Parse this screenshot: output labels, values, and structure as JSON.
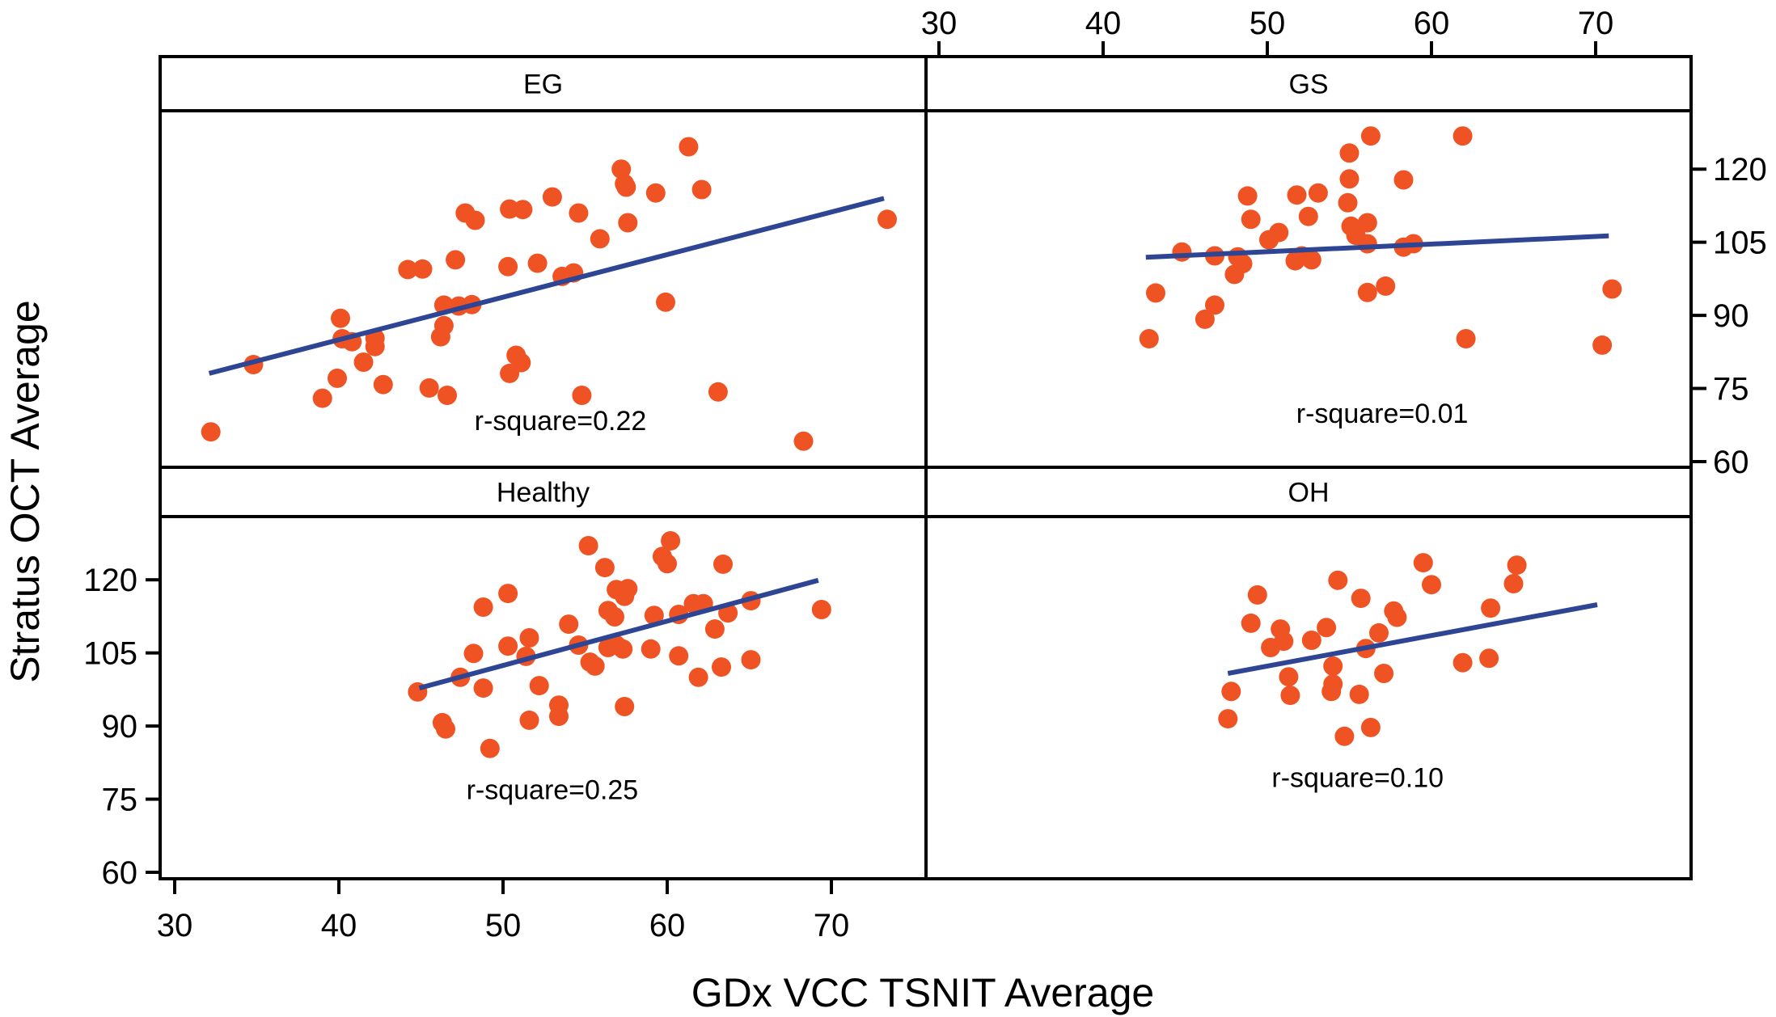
{
  "chart_data": {
    "type": "scatter",
    "title": "",
    "xlabel": "GDx VCC TSNIT Average",
    "ylabel": "Stratus OCT Average",
    "xlim": [
      29.1,
      75.8
    ],
    "ylim": [
      58.7,
      133
    ],
    "xticks": [
      30,
      40,
      50,
      60,
      70
    ],
    "yticks": [
      60,
      75,
      90,
      105,
      120
    ],
    "grid": false,
    "layout": "2x2 panels; x axis ticks on bottom-left and top-right, y axis ticks on bottom-left and top-right",
    "colors": {
      "points": "#F05323",
      "fit_line": "#2E4593",
      "frame": "#000000"
    },
    "panels": [
      {
        "name": "EG",
        "row": 0,
        "col": 0,
        "r_square_label": "r-square=0.22",
        "r_square": 0.22,
        "label_pos": [
          53.5,
          66.5
        ],
        "fit_line": {
          "x": [
            32.1,
            73.2
          ],
          "y": [
            78.1,
            114.0
          ]
        },
        "points": [
          [
            32.2,
            66.1
          ],
          [
            34.8,
            79.9
          ],
          [
            39.0,
            73.0
          ],
          [
            39.9,
            77.1
          ],
          [
            40.1,
            89.4
          ],
          [
            40.2,
            85.2
          ],
          [
            40.8,
            84.6
          ],
          [
            41.5,
            80.4
          ],
          [
            42.2,
            85.3
          ],
          [
            42.2,
            83.6
          ],
          [
            42.7,
            75.8
          ],
          [
            44.2,
            99.4
          ],
          [
            45.1,
            99.5
          ],
          [
            45.5,
            75.1
          ],
          [
            46.6,
            73.6
          ],
          [
            46.4,
            92.1
          ],
          [
            47.3,
            91.9
          ],
          [
            48.1,
            92.2
          ],
          [
            46.4,
            87.9
          ],
          [
            46.2,
            85.6
          ],
          [
            47.1,
            101.4
          ],
          [
            47.7,
            111.0
          ],
          [
            48.3,
            109.5
          ],
          [
            50.4,
            111.8
          ],
          [
            51.2,
            111.7
          ],
          [
            50.3,
            100.0
          ],
          [
            50.8,
            81.8
          ],
          [
            51.1,
            80.3
          ],
          [
            50.4,
            78.1
          ],
          [
            52.1,
            100.7
          ],
          [
            53.0,
            114.3
          ],
          [
            54.6,
            111.0
          ],
          [
            55.9,
            105.7
          ],
          [
            53.6,
            98.0
          ],
          [
            54.3,
            98.7
          ],
          [
            57.2,
            120.0
          ],
          [
            57.5,
            116.3
          ],
          [
            57.6,
            109.0
          ],
          [
            59.3,
            115.1
          ],
          [
            61.3,
            124.6
          ],
          [
            62.1,
            115.8
          ],
          [
            59.9,
            92.7
          ],
          [
            73.4,
            109.7
          ],
          [
            54.8,
            73.6
          ],
          [
            63.1,
            74.3
          ],
          [
            68.3,
            64.2
          ],
          [
            57.4,
            117.0
          ]
        ]
      },
      {
        "name": "GS",
        "row": 0,
        "col": 1,
        "r_square_label": "r-square=0.01",
        "r_square": 0.01,
        "label_pos": [
          57.0,
          68.0
        ],
        "fit_line": {
          "x": [
            42.6,
            70.8
          ],
          "y": [
            101.9,
            106.3
          ]
        },
        "points": [
          [
            42.8,
            85.2
          ],
          [
            43.2,
            94.6
          ],
          [
            44.8,
            103.0
          ],
          [
            46.2,
            89.2
          ],
          [
            46.8,
            92.1
          ],
          [
            46.8,
            102.2
          ],
          [
            48.0,
            98.4
          ],
          [
            48.2,
            102.0
          ],
          [
            48.5,
            100.6
          ],
          [
            48.8,
            114.5
          ],
          [
            49.0,
            109.7
          ],
          [
            50.1,
            105.5
          ],
          [
            50.7,
            107.0
          ],
          [
            51.7,
            101.2
          ],
          [
            52.1,
            102.2
          ],
          [
            52.7,
            101.4
          ],
          [
            51.8,
            114.7
          ],
          [
            53.1,
            115.1
          ],
          [
            52.5,
            110.3
          ],
          [
            54.9,
            113.1
          ],
          [
            55.0,
            118.0
          ],
          [
            55.0,
            123.3
          ],
          [
            56.3,
            126.8
          ],
          [
            55.1,
            108.3
          ],
          [
            56.1,
            109.0
          ],
          [
            55.4,
            106.4
          ],
          [
            56.1,
            104.7
          ],
          [
            56.1,
            94.7
          ],
          [
            57.2,
            96.0
          ],
          [
            58.3,
            117.8
          ],
          [
            58.3,
            104.0
          ],
          [
            58.9,
            104.7
          ],
          [
            61.9,
            126.8
          ],
          [
            62.1,
            85.2
          ],
          [
            71.0,
            95.4
          ],
          [
            70.4,
            83.9
          ]
        ]
      },
      {
        "name": "Healthy",
        "row": 1,
        "col": 0,
        "r_square_label": "r-square=0.25",
        "r_square": 0.25,
        "label_pos": [
          53.0,
          75.0
        ],
        "fit_line": {
          "x": [
            44.9,
            69.2
          ],
          "y": [
            97.8,
            119.9
          ]
        },
        "points": [
          [
            44.8,
            97.0
          ],
          [
            46.3,
            90.7
          ],
          [
            46.5,
            89.4
          ],
          [
            47.4,
            100.0
          ],
          [
            48.2,
            104.9
          ],
          [
            48.8,
            97.8
          ],
          [
            48.8,
            114.4
          ],
          [
            49.2,
            85.4
          ],
          [
            50.3,
            117.2
          ],
          [
            50.3,
            106.4
          ],
          [
            51.6,
            108.1
          ],
          [
            51.4,
            104.3
          ],
          [
            51.6,
            91.2
          ],
          [
            52.2,
            98.3
          ],
          [
            53.4,
            94.3
          ],
          [
            53.4,
            92.0
          ],
          [
            54.0,
            110.9
          ],
          [
            54.6,
            106.6
          ],
          [
            55.2,
            127.0
          ],
          [
            55.3,
            103.1
          ],
          [
            55.6,
            102.3
          ],
          [
            56.2,
            122.5
          ],
          [
            56.4,
            106.1
          ],
          [
            56.9,
            106.6
          ],
          [
            57.3,
            105.8
          ],
          [
            56.4,
            113.7
          ],
          [
            56.8,
            112.4
          ],
          [
            56.9,
            118.0
          ],
          [
            57.6,
            118.2
          ],
          [
            57.4,
            116.6
          ],
          [
            57.4,
            94.0
          ],
          [
            59.0,
            105.8
          ],
          [
            59.2,
            112.7
          ],
          [
            60.2,
            128.0
          ],
          [
            59.7,
            124.8
          ],
          [
            60.0,
            123.3
          ],
          [
            60.7,
            104.4
          ],
          [
            60.7,
            112.9
          ],
          [
            61.6,
            115.1
          ],
          [
            62.2,
            115.1
          ],
          [
            61.9,
            100.0
          ],
          [
            62.9,
            109.9
          ],
          [
            63.3,
            102.1
          ],
          [
            63.4,
            123.2
          ],
          [
            63.7,
            113.2
          ],
          [
            65.1,
            115.7
          ],
          [
            65.1,
            103.6
          ],
          [
            69.4,
            113.9
          ]
        ]
      },
      {
        "name": "OH",
        "row": 1,
        "col": 1,
        "r_square_label": "r-square=0.10",
        "r_square": 0.1,
        "label_pos": [
          55.5,
          77.5
        ],
        "fit_line": {
          "x": [
            47.6,
            70.1
          ],
          "y": [
            100.8,
            114.9
          ]
        },
        "points": [
          [
            47.6,
            91.5
          ],
          [
            47.8,
            97.1
          ],
          [
            49.0,
            111.1
          ],
          [
            49.4,
            116.9
          ],
          [
            50.2,
            106.1
          ],
          [
            50.8,
            109.9
          ],
          [
            51.0,
            107.4
          ],
          [
            51.3,
            100.1
          ],
          [
            51.4,
            96.3
          ],
          [
            52.7,
            107.6
          ],
          [
            53.6,
            110.2
          ],
          [
            54.3,
            119.9
          ],
          [
            54.0,
            102.3
          ],
          [
            54.0,
            98.6
          ],
          [
            53.9,
            97.1
          ],
          [
            54.7,
            87.9
          ],
          [
            55.7,
            116.2
          ],
          [
            56.0,
            105.9
          ],
          [
            55.6,
            96.5
          ],
          [
            56.3,
            89.7
          ],
          [
            56.8,
            109.1
          ],
          [
            57.1,
            100.8
          ],
          [
            57.7,
            113.6
          ],
          [
            57.9,
            112.3
          ],
          [
            59.5,
            123.5
          ],
          [
            60.0,
            119.0
          ],
          [
            61.9,
            103.0
          ],
          [
            63.5,
            103.9
          ],
          [
            63.6,
            114.2
          ],
          [
            65.0,
            119.2
          ],
          [
            65.2,
            123.0
          ]
        ]
      }
    ]
  }
}
